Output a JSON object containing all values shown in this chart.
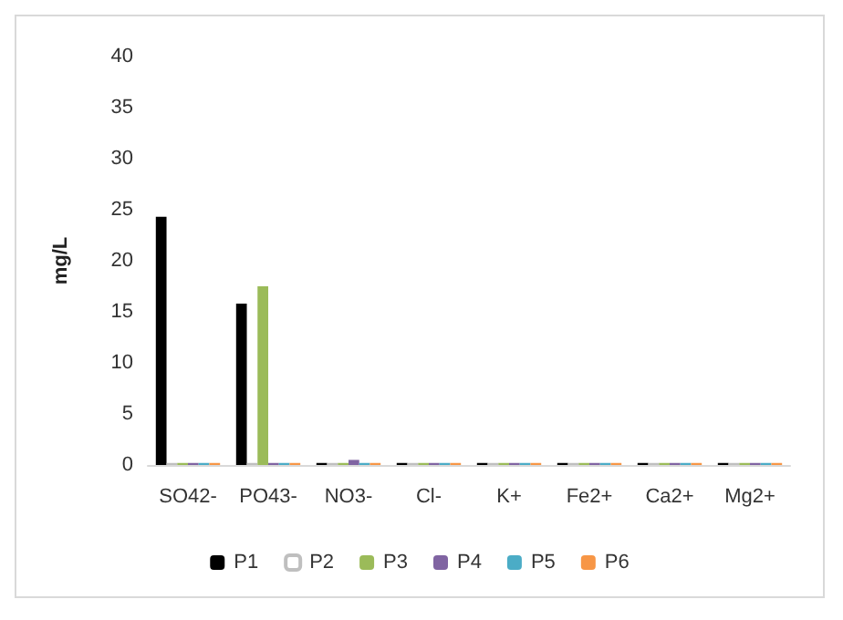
{
  "chart_data": {
    "type": "bar",
    "ylabel": "mg/L",
    "categories": [
      "SO42-",
      "PO43-",
      "NO3-",
      "Cl-",
      "K+",
      "Fe2+",
      "Ca2+",
      "Mg2+"
    ],
    "series": [
      {
        "name": "P1",
        "color": "#000000",
        "values": [
          24.3,
          15.8,
          0.2,
          0.2,
          0.2,
          0.2,
          0.2,
          0.2
        ]
      },
      {
        "name": "P2",
        "color": "#ffffff",
        "values": [
          0.2,
          0.2,
          0.2,
          0.2,
          0.2,
          0.2,
          0.2,
          0.2
        ]
      },
      {
        "name": "P3",
        "color": "#9bbb59",
        "values": [
          0.2,
          17.5,
          0.2,
          0.2,
          0.2,
          0.2,
          0.2,
          0.2
        ]
      },
      {
        "name": "P4",
        "color": "#8064a2",
        "values": [
          0.2,
          0.2,
          0.5,
          0.2,
          0.2,
          0.2,
          0.2,
          0.2
        ]
      },
      {
        "name": "P5",
        "color": "#4bacc6",
        "values": [
          0.2,
          0.2,
          0.2,
          0.2,
          0.2,
          0.2,
          0.2,
          0.2
        ]
      },
      {
        "name": "P6",
        "color": "#f79646",
        "values": [
          0.2,
          0.2,
          0.2,
          0.2,
          0.2,
          0.2,
          0.2,
          0.2
        ]
      }
    ],
    "ylim": [
      0,
      40
    ],
    "yticks": [
      0,
      5,
      10,
      15,
      20,
      25,
      30,
      35,
      40
    ],
    "grid": false,
    "legend": "bottom"
  }
}
